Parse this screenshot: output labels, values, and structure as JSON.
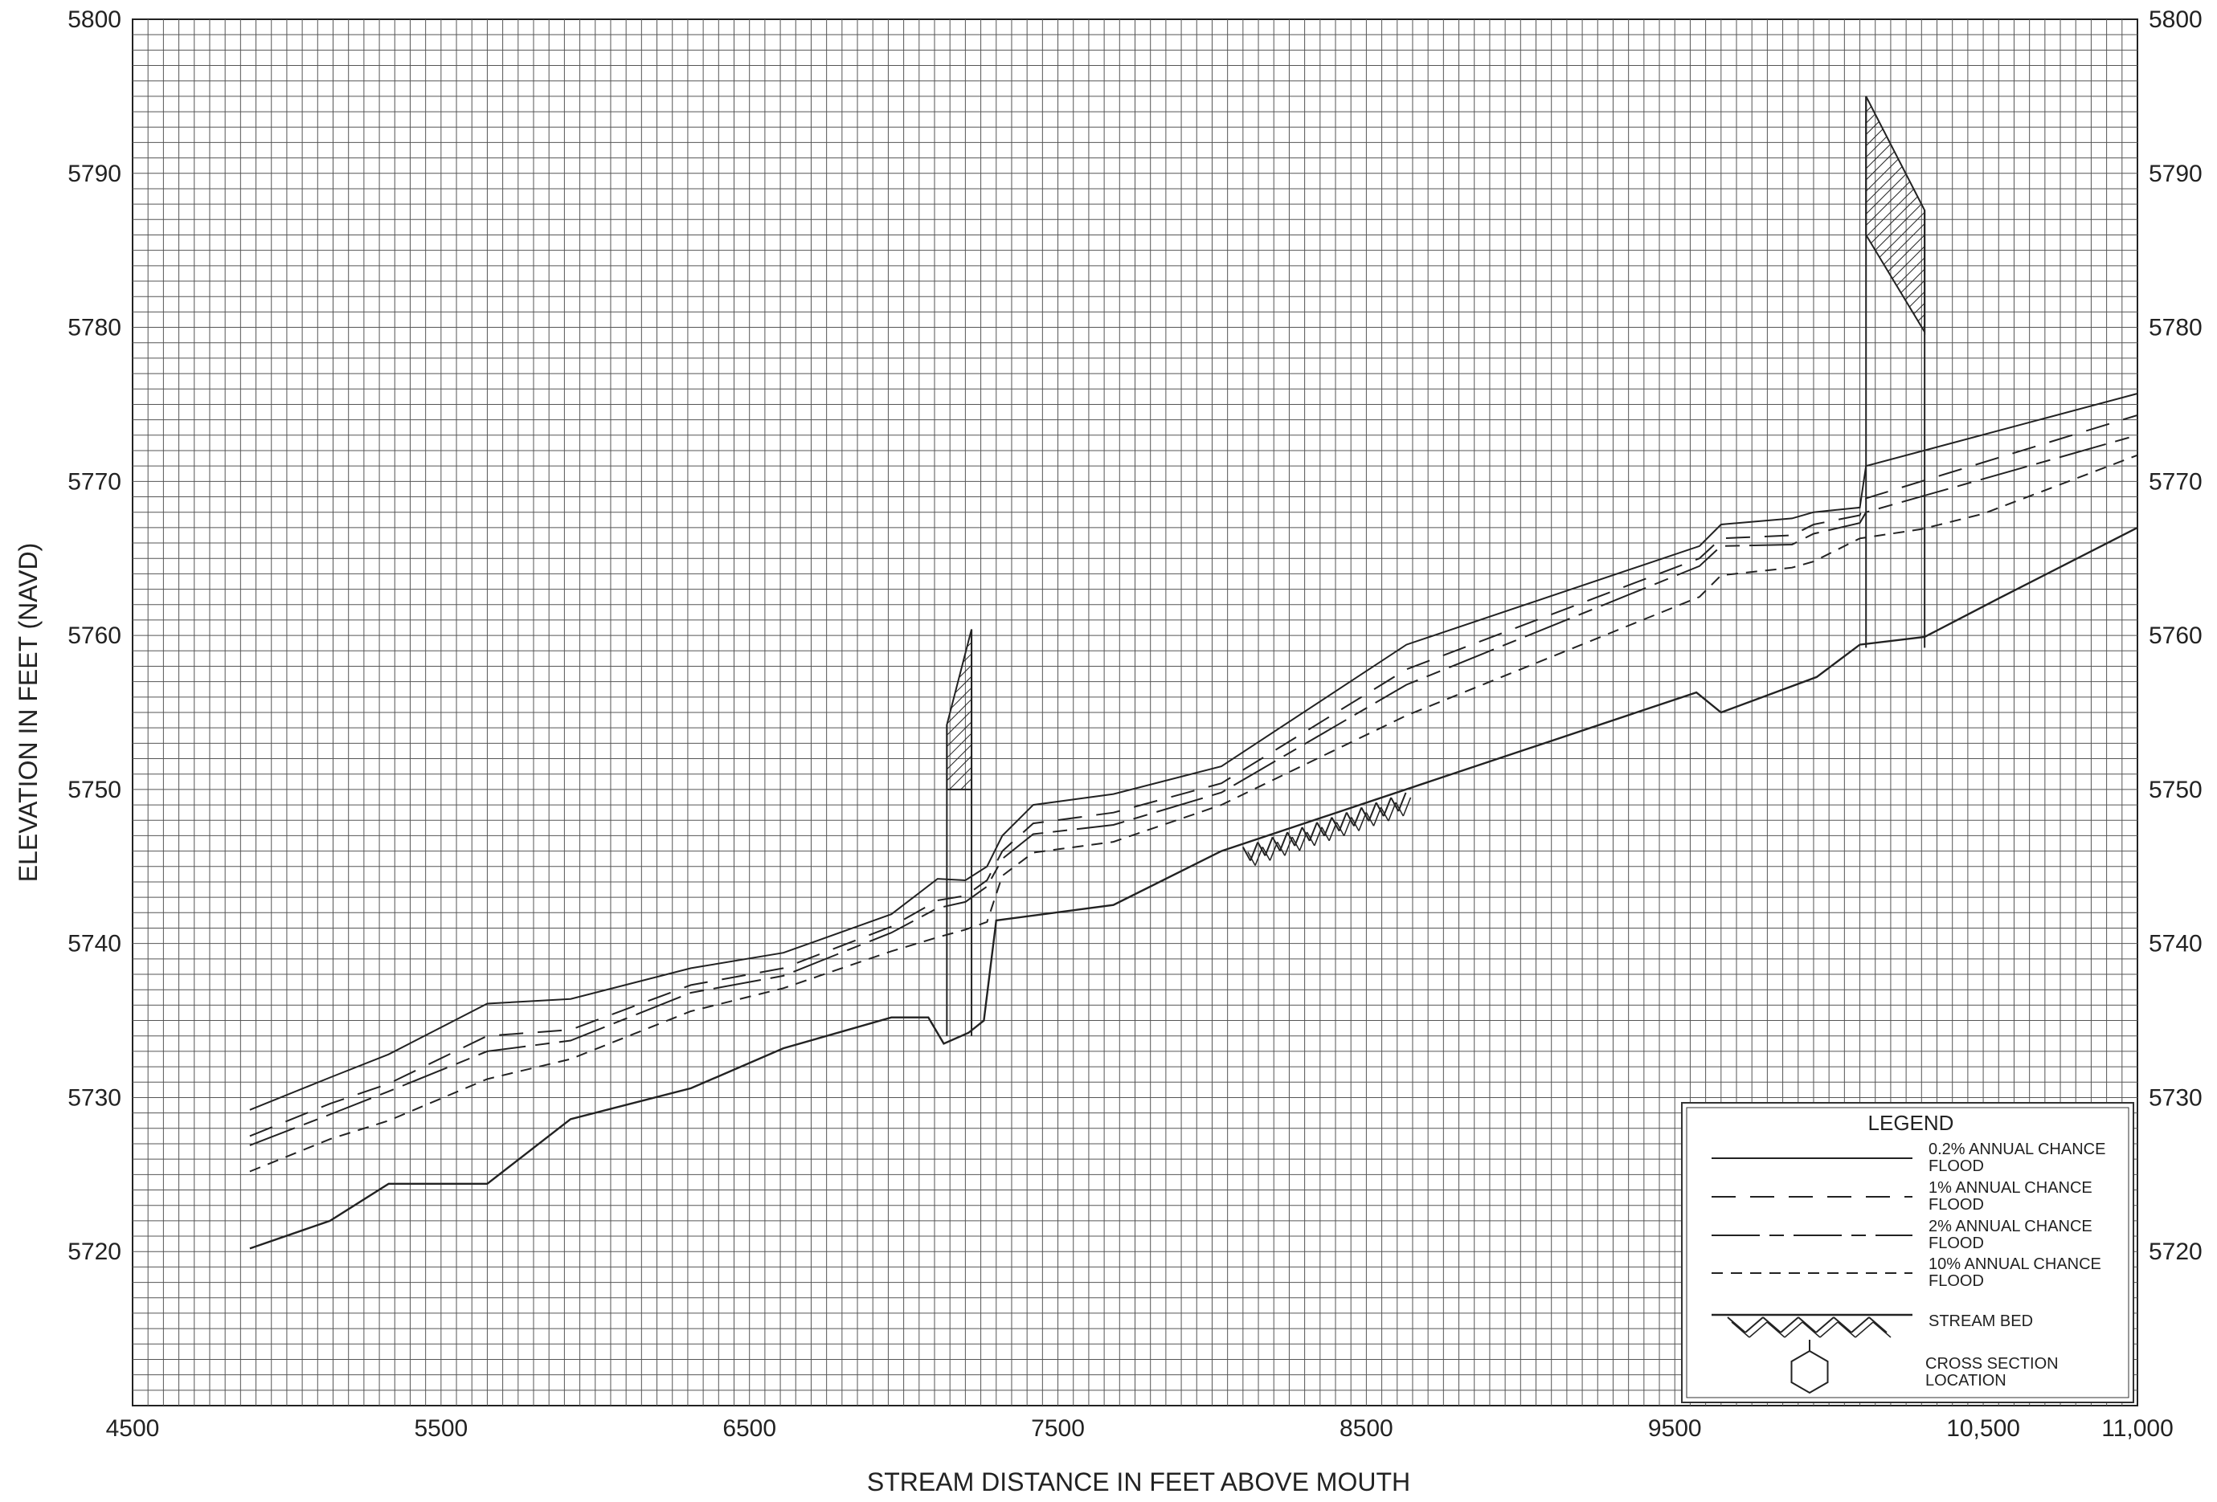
{
  "chart_data": {
    "type": "line",
    "title": "",
    "xlabel": "STREAM DISTANCE IN FEET ABOVE MOUTH",
    "ylabel": "ELEVATION IN FEET (NAVD)",
    "xlim": [
      4500,
      11000
    ],
    "ylim": [
      5710,
      5800
    ],
    "grid": true,
    "x_ticks": [
      {
        "value": 4500,
        "label": "4500"
      },
      {
        "value": 5500,
        "label": "5500"
      },
      {
        "value": 6500,
        "label": "6500"
      },
      {
        "value": 7500,
        "label": "7500"
      },
      {
        "value": 8500,
        "label": "8500"
      },
      {
        "value": 9500,
        "label": "9500"
      },
      {
        "value": 10500,
        "label": "10,500"
      },
      {
        "value": 11000,
        "label": "11,000"
      }
    ],
    "y_ticks": [
      {
        "value": 5720,
        "label": "5720"
      },
      {
        "value": 5730,
        "label": "5730"
      },
      {
        "value": 5740,
        "label": "5740"
      },
      {
        "value": 5750,
        "label": "5750"
      },
      {
        "value": 5760,
        "label": "5760"
      },
      {
        "value": 5770,
        "label": "5770"
      },
      {
        "value": 5780,
        "label": "5780"
      },
      {
        "value": 5790,
        "label": "5790"
      },
      {
        "value": 5800,
        "label": "5800"
      }
    ],
    "legend": {
      "title": "LEGEND",
      "placement": "bottom-right",
      "entries": [
        {
          "key": "p02",
          "lines": [
            "0.2% ANNUAL CHANCE",
            "FLOOD"
          ]
        },
        {
          "key": "p1",
          "lines": [
            "1% ANNUAL CHANCE",
            "FLOOD"
          ]
        },
        {
          "key": "p2",
          "lines": [
            "2% ANNUAL CHANCE",
            "FLOOD"
          ]
        },
        {
          "key": "p10",
          "lines": [
            "10% ANNUAL CHANCE",
            "FLOOD"
          ]
        },
        {
          "key": "bed",
          "lines": [
            "STREAM BED"
          ]
        },
        {
          "key": "xs",
          "lines": [
            "CROSS SECTION",
            "LOCATION"
          ]
        }
      ]
    },
    "series": [
      {
        "key": "p02",
        "dash": "",
        "points": [
          [
            4880,
            5729.2
          ],
          [
            5140,
            5731.3
          ],
          [
            5330,
            5732.8
          ],
          [
            5650,
            5736.1
          ],
          [
            5920,
            5736.4
          ],
          [
            6310,
            5738.4
          ],
          [
            6610,
            5739.4
          ],
          [
            6960,
            5741.9
          ],
          [
            7110,
            5744.2
          ],
          [
            7200,
            5744.1
          ],
          [
            7270,
            5745.0
          ],
          [
            7320,
            5747.0
          ],
          [
            7420,
            5749.0
          ],
          [
            7680,
            5749.7
          ],
          [
            8030,
            5751.5
          ],
          [
            8630,
            5759.4
          ],
          [
            9580,
            5765.8
          ],
          [
            9650,
            5767.2
          ],
          [
            9880,
            5767.6
          ],
          [
            9950,
            5768.0
          ],
          [
            10100,
            5768.3
          ],
          [
            10120,
            5771.0
          ],
          [
            11000,
            5775.7
          ]
        ]
      },
      {
        "key": "p1",
        "dash": "30 18",
        "points": [
          [
            4880,
            5727.5
          ],
          [
            5140,
            5729.6
          ],
          [
            5330,
            5730.9
          ],
          [
            5650,
            5734.0
          ],
          [
            5920,
            5734.4
          ],
          [
            6310,
            5737.3
          ],
          [
            6610,
            5738.4
          ],
          [
            6960,
            5741.1
          ],
          [
            7110,
            5742.8
          ],
          [
            7200,
            5743.1
          ],
          [
            7270,
            5744.1
          ],
          [
            7320,
            5746.0
          ],
          [
            7420,
            5747.8
          ],
          [
            7680,
            5748.5
          ],
          [
            8030,
            5750.4
          ],
          [
            8630,
            5757.8
          ],
          [
            9580,
            5765.0
          ],
          [
            9650,
            5766.3
          ],
          [
            9880,
            5766.5
          ],
          [
            9950,
            5767.2
          ],
          [
            10100,
            5767.8
          ],
          [
            10120,
            5768.9
          ],
          [
            11000,
            5774.3
          ]
        ]
      },
      {
        "key": "p2",
        "dash": "60 12 18 12",
        "points": [
          [
            4880,
            5726.9
          ],
          [
            5140,
            5728.9
          ],
          [
            5330,
            5730.4
          ],
          [
            5650,
            5733.0
          ],
          [
            5920,
            5733.7
          ],
          [
            6310,
            5736.8
          ],
          [
            6610,
            5737.9
          ],
          [
            6960,
            5740.7
          ],
          [
            7110,
            5742.3
          ],
          [
            7200,
            5742.7
          ],
          [
            7270,
            5743.7
          ],
          [
            7320,
            5745.5
          ],
          [
            7420,
            5747.1
          ],
          [
            7680,
            5747.7
          ],
          [
            8030,
            5749.8
          ],
          [
            8630,
            5756.8
          ],
          [
            9580,
            5764.5
          ],
          [
            9650,
            5765.8
          ],
          [
            9880,
            5765.9
          ],
          [
            9950,
            5766.6
          ],
          [
            10100,
            5767.3
          ],
          [
            10120,
            5768.0
          ],
          [
            11000,
            5773.0
          ]
        ]
      },
      {
        "key": "p10",
        "dash": "14 10",
        "points": [
          [
            4880,
            5725.2
          ],
          [
            5140,
            5727.3
          ],
          [
            5330,
            5728.5
          ],
          [
            5650,
            5731.2
          ],
          [
            5920,
            5732.5
          ],
          [
            6310,
            5735.6
          ],
          [
            6610,
            5737.1
          ],
          [
            6960,
            5739.5
          ],
          [
            7110,
            5740.4
          ],
          [
            7200,
            5740.9
          ],
          [
            7270,
            5741.4
          ],
          [
            7320,
            5744.4
          ],
          [
            7420,
            5745.9
          ],
          [
            7680,
            5746.6
          ],
          [
            8030,
            5749.0
          ],
          [
            8630,
            5754.8
          ],
          [
            9580,
            5762.5
          ],
          [
            9650,
            5763.9
          ],
          [
            9880,
            5764.4
          ],
          [
            9950,
            5764.8
          ],
          [
            10100,
            5766.3
          ],
          [
            10300,
            5766.9
          ],
          [
            10500,
            5767.9
          ],
          [
            11000,
            5771.7
          ]
        ]
      },
      {
        "key": "bed",
        "dash": "",
        "points": [
          [
            4880,
            5720.2
          ],
          [
            5140,
            5722.0
          ],
          [
            5330,
            5724.4
          ],
          [
            5650,
            5724.4
          ],
          [
            5920,
            5728.6
          ],
          [
            6310,
            5730.6
          ],
          [
            6610,
            5733.2
          ],
          [
            6960,
            5735.2
          ],
          [
            7080,
            5735.2
          ],
          [
            7130,
            5733.5
          ],
          [
            7210,
            5734.2
          ],
          [
            7260,
            5735.0
          ],
          [
            7300,
            5741.5
          ],
          [
            7680,
            5742.5
          ],
          [
            8030,
            5746.0
          ],
          [
            9570,
            5756.3
          ],
          [
            9650,
            5755.0
          ],
          [
            9960,
            5757.3
          ],
          [
            10100,
            5759.4
          ],
          [
            10310,
            5759.9
          ],
          [
            10550,
            5762.4
          ],
          [
            11000,
            5767.0
          ]
        ]
      }
    ],
    "structures": [
      {
        "x": [
          7140,
          7220
        ],
        "bottom": 5734.0,
        "deck_bottom": 5750.0,
        "top": [
          5754.2,
          5760.4
        ]
      },
      {
        "x": [
          10120,
          10310
        ],
        "bottom": 5759.2,
        "deck_bottom": [
          5786.0,
          5779.7
        ],
        "top": [
          5795.0,
          5787.6
        ]
      }
    ],
    "bed_hatch_x": [
      8100,
      8620
    ]
  }
}
